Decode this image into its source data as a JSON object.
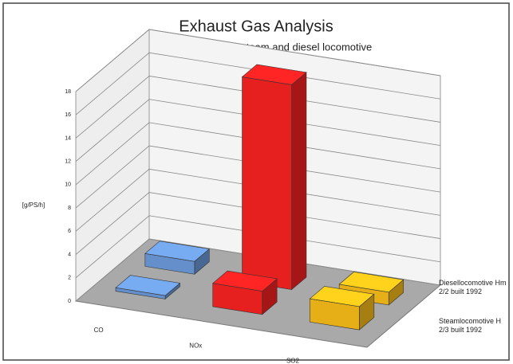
{
  "chart_data": {
    "type": "bar3d",
    "title": "Exhaust Gas Analysis",
    "subtitle": "Comparison between steam and diesel locomotive",
    "y_label": "[g/PS/h]",
    "categories": [
      "CO",
      "NOx",
      "SO2"
    ],
    "colors": [
      "#6f9fe0",
      "#ff2222",
      "#ffc21a"
    ],
    "series": [
      {
        "name": "Steamlocomotive H 2/3 built 1992",
        "values": [
          0.3,
          2.0,
          2.0
        ]
      },
      {
        "name": "Diesellocomotive Hm 2/2 built 1992",
        "values": [
          1.1,
          17.6,
          1.1
        ]
      }
    ],
    "ylim": [
      0,
      18
    ],
    "yticks": [
      0,
      2,
      4,
      6,
      8,
      10,
      12,
      14,
      16,
      18
    ],
    "grid": true
  }
}
